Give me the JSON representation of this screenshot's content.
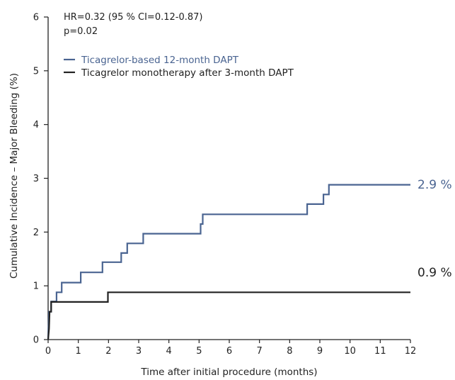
{
  "chart_data": {
    "type": "line",
    "step": true,
    "xlabel": "Time after initial procedure (months)",
    "ylabel": "Cumulative Incidence – Major Bleeding (%)",
    "xlim": [
      0,
      12
    ],
    "ylim": [
      0,
      6
    ],
    "x_ticks": [
      "0",
      "1",
      "2",
      "3",
      "4",
      "5",
      "6",
      "7",
      "8",
      "9",
      "10",
      "11",
      "12"
    ],
    "y_ticks": [
      "0",
      "1",
      "2",
      "3",
      "4",
      "5",
      "6"
    ],
    "grid": false,
    "legend_position": "top-left",
    "annotations": {
      "hr": "HR=0.32 (95 % CI=0.12-0.87)",
      "p": "p=0.02"
    },
    "series": [
      {
        "name": "Ticagrelor-based 12-month DAPT",
        "color": "#4a6491",
        "end_label": "2.9 %",
        "points": [
          [
            0,
            0
          ],
          [
            0.03,
            0.52
          ],
          [
            0.1,
            0.52
          ],
          [
            0.1,
            0.71
          ],
          [
            0.28,
            0.71
          ],
          [
            0.28,
            0.88
          ],
          [
            0.45,
            0.88
          ],
          [
            0.45,
            1.06
          ],
          [
            1.08,
            1.06
          ],
          [
            1.08,
            1.25
          ],
          [
            1.8,
            1.25
          ],
          [
            1.8,
            1.44
          ],
          [
            2.42,
            1.44
          ],
          [
            2.42,
            1.61
          ],
          [
            2.62,
            1.61
          ],
          [
            2.62,
            1.79
          ],
          [
            3.15,
            1.79
          ],
          [
            3.15,
            1.97
          ],
          [
            5.05,
            1.97
          ],
          [
            5.05,
            2.15
          ],
          [
            5.12,
            2.15
          ],
          [
            5.12,
            2.33
          ],
          [
            8.58,
            2.33
          ],
          [
            8.58,
            2.52
          ],
          [
            9.12,
            2.52
          ],
          [
            9.12,
            2.7
          ],
          [
            9.3,
            2.7
          ],
          [
            9.3,
            2.88
          ],
          [
            12,
            2.88
          ]
        ]
      },
      {
        "name": "Ticagrelor monotherapy after 3-month DAPT",
        "color": "#222222",
        "end_label": "0.9 %",
        "points": [
          [
            0,
            0
          ],
          [
            0.03,
            0.2
          ],
          [
            0.05,
            0.52
          ],
          [
            0.1,
            0.52
          ],
          [
            0.1,
            0.7
          ],
          [
            1.98,
            0.7
          ],
          [
            1.98,
            0.88
          ],
          [
            12,
            0.88
          ]
        ]
      }
    ]
  }
}
